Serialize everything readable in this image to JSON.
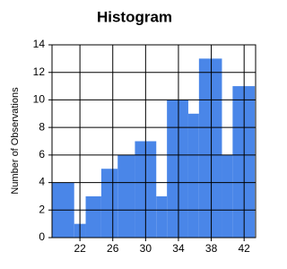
{
  "chart_data": {
    "type": "histogram",
    "title": "Histogram",
    "y_label": "Number of Observations",
    "bins": [
      18.6,
      21.3,
      22.7,
      24.6,
      26.6,
      28.7,
      31.3,
      32.6,
      35.2,
      36.5,
      39.3,
      40.6,
      43.3
    ],
    "values": [
      4,
      1,
      3,
      5,
      6,
      7,
      3,
      10,
      9,
      13,
      6,
      11
    ],
    "color": "#4a86e8",
    "xlim": [
      18.6,
      43.4
    ],
    "xticks": [
      22,
      26,
      30,
      34,
      38,
      42
    ],
    "ylim": [
      0,
      14
    ],
    "yticks": [
      0,
      2,
      4,
      6,
      8,
      10,
      12,
      14
    ],
    "grid": true
  }
}
